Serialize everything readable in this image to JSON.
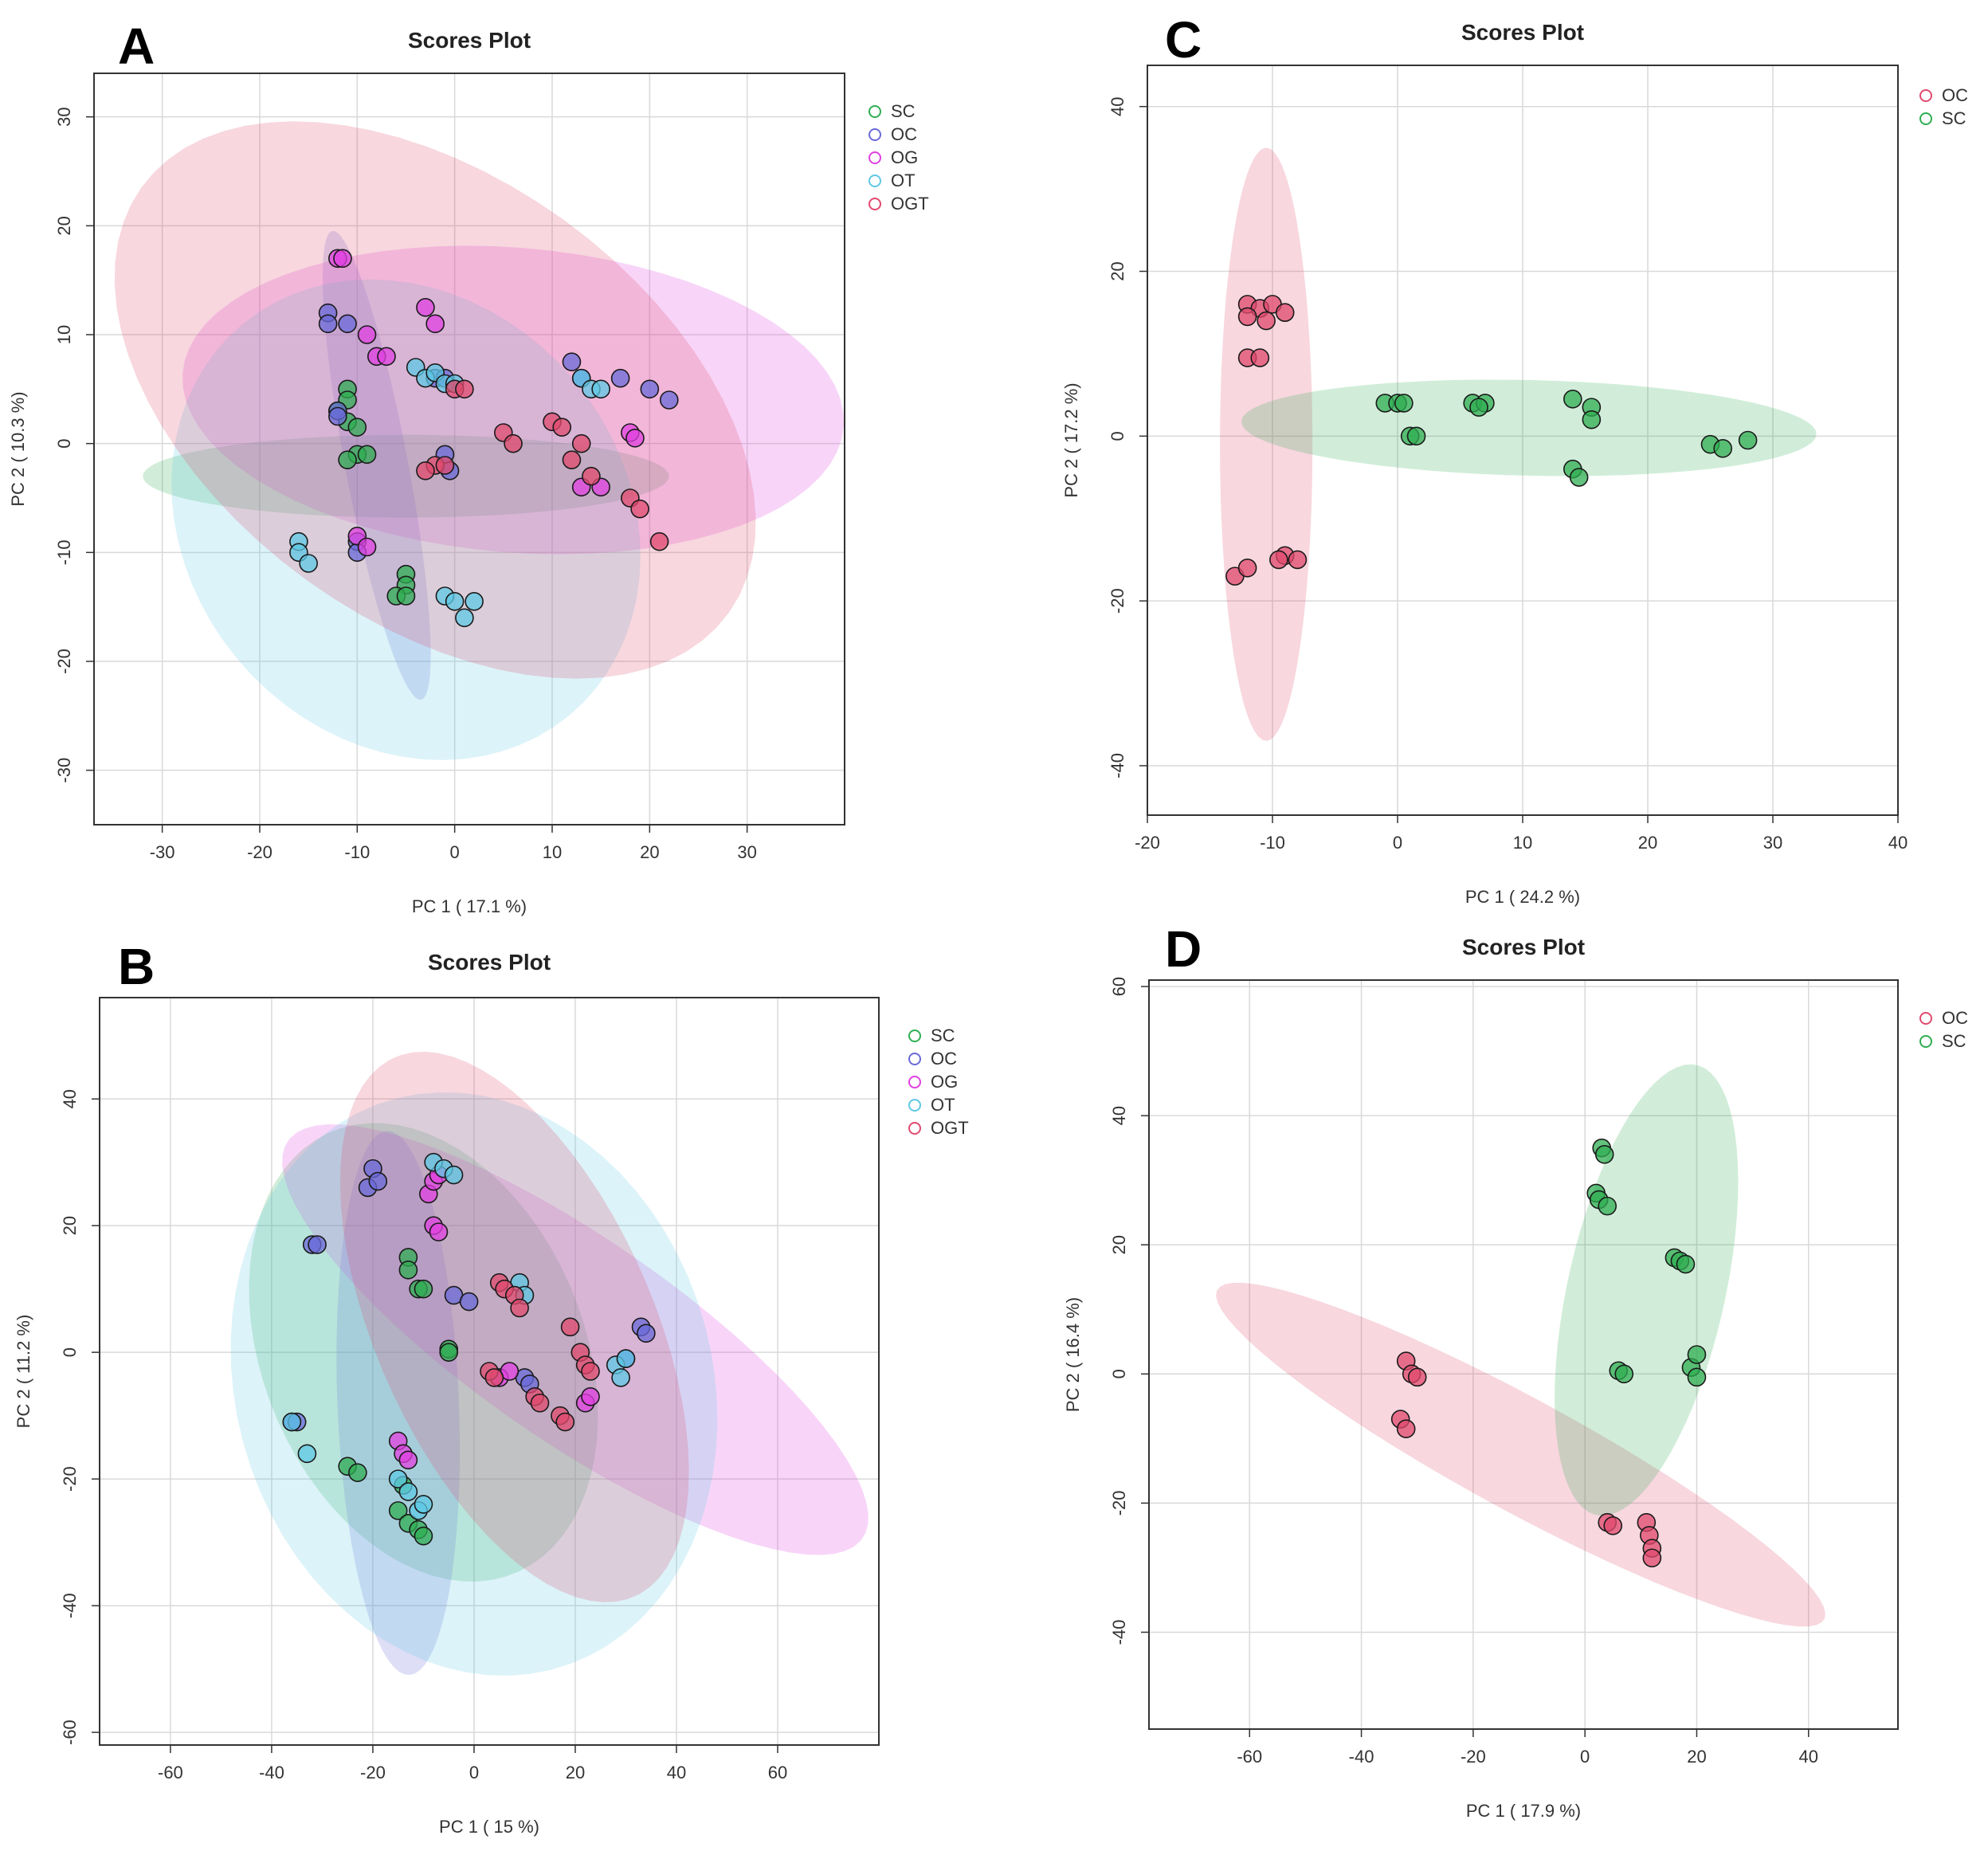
{
  "chart_data": [
    {
      "panel_letter": "A",
      "type": "scatter",
      "title": "Scores Plot",
      "xlabel": "PC 1 ( 17.1 %)",
      "ylabel": "PC 2 ( 10.3 %)",
      "xlim": [
        -37,
        40
      ],
      "ylim": [
        -35,
        34
      ],
      "xticks": [
        -30,
        -20,
        -10,
        0,
        10,
        20,
        30
      ],
      "yticks": [
        -30,
        -20,
        -10,
        0,
        10,
        20,
        30
      ],
      "legend_position": "right",
      "groups": [
        {
          "name": "SC",
          "color": "#2fae52",
          "ellipse": {
            "cx": -5,
            "cy": -3,
            "rx": 27,
            "ry": 3.8,
            "angle": 0
          },
          "points": [
            [
              -11,
              5
            ],
            [
              -11,
              4
            ],
            [
              -12,
              3
            ],
            [
              -11,
              2
            ],
            [
              -10,
              1.5
            ],
            [
              -10,
              -1
            ],
            [
              -9,
              -1
            ],
            [
              -11,
              -1.5
            ],
            [
              -5,
              -12
            ],
            [
              -5,
              -13
            ],
            [
              -6,
              -14
            ],
            [
              -5,
              -14
            ]
          ]
        },
        {
          "name": "OC",
          "color": "#6a6ad8",
          "ellipse": {
            "cx": -8,
            "cy": -2,
            "rx": 22,
            "ry": 3.2,
            "angle": -78
          },
          "points": [
            [
              -13,
              12
            ],
            [
              -13,
              11
            ],
            [
              -11,
              11
            ],
            [
              -12,
              3
            ],
            [
              -12,
              2.5
            ],
            [
              -2,
              6
            ],
            [
              -1,
              6
            ],
            [
              12,
              7.5
            ],
            [
              13,
              6
            ],
            [
              17,
              6
            ],
            [
              20,
              5
            ],
            [
              22,
              4
            ],
            [
              -1,
              -1
            ],
            [
              -0.5,
              -2.5
            ],
            [
              -10,
              -9
            ],
            [
              -10,
              -10
            ]
          ]
        },
        {
          "name": "OG",
          "color": "#e040e0",
          "ellipse": {
            "cx": 6,
            "cy": 4,
            "rx": 34,
            "ry": 14,
            "angle": -4
          },
          "points": [
            [
              -12,
              17
            ],
            [
              -11.5,
              17
            ],
            [
              -9,
              10
            ],
            [
              -8,
              8
            ],
            [
              -7,
              8
            ],
            [
              -3,
              12.5
            ],
            [
              -2,
              11
            ],
            [
              -10,
              -8.5
            ],
            [
              -9,
              -9.5
            ],
            [
              18,
              1
            ],
            [
              18.5,
              0.5
            ],
            [
              13,
              -4
            ],
            [
              15,
              -4
            ]
          ]
        },
        {
          "name": "OT",
          "color": "#5ec8e4",
          "ellipse": {
            "cx": -5,
            "cy": -7,
            "rx": 25,
            "ry": 21,
            "angle": -30
          },
          "points": [
            [
              -4,
              7
            ],
            [
              -3,
              6
            ],
            [
              -2,
              6.5
            ],
            [
              -1,
              5.5
            ],
            [
              0,
              5.5
            ],
            [
              13,
              6
            ],
            [
              14,
              5
            ],
            [
              15,
              5
            ],
            [
              -16,
              -9
            ],
            [
              -16,
              -10
            ],
            [
              -15,
              -11
            ],
            [
              -1,
              -14
            ],
            [
              0,
              -14.5
            ],
            [
              1,
              -16
            ],
            [
              2,
              -14.5
            ]
          ]
        },
        {
          "name": "OGT",
          "color": "#e04a6e",
          "ellipse": {
            "cx": -2,
            "cy": 4,
            "rx": 36,
            "ry": 21,
            "angle": -30
          },
          "points": [
            [
              0,
              5
            ],
            [
              1,
              5
            ],
            [
              10,
              2
            ],
            [
              11,
              1.5
            ],
            [
              5,
              1
            ],
            [
              6,
              0
            ],
            [
              12,
              -1.5
            ],
            [
              13,
              0
            ],
            [
              14,
              -3
            ],
            [
              -2,
              -2
            ],
            [
              -3,
              -2.5
            ],
            [
              -1,
              -2
            ],
            [
              18,
              -5
            ],
            [
              19,
              -6
            ],
            [
              21,
              -9
            ]
          ]
        }
      ]
    },
    {
      "panel_letter": "B",
      "type": "scatter",
      "title": "Scores Plot",
      "xlabel": "PC 1 ( 15 %)",
      "ylabel": "PC 2 ( 11.2 %)",
      "xlim": [
        -74,
        80
      ],
      "ylim": [
        -62,
        56
      ],
      "xticks": [
        -60,
        -40,
        -20,
        0,
        20,
        40,
        60
      ],
      "yticks": [
        -60,
        -40,
        -20,
        0,
        20,
        40
      ],
      "legend_position": "right",
      "groups": [
        {
          "name": "SC",
          "color": "#2fae52",
          "ellipse": {
            "cx": -10,
            "cy": 0,
            "rx": 40,
            "ry": 30,
            "angle": -50
          },
          "points": [
            [
              -13,
              15
            ],
            [
              -13,
              13
            ],
            [
              -11,
              10
            ],
            [
              -10,
              10
            ],
            [
              -5,
              0.5
            ],
            [
              -5,
              0
            ],
            [
              -25,
              -18
            ],
            [
              -23,
              -19
            ],
            [
              -15,
              -25
            ],
            [
              -13,
              -27
            ],
            [
              -11,
              -28
            ],
            [
              -10,
              -29
            ],
            [
              -14,
              -21
            ]
          ]
        },
        {
          "name": "OC",
          "color": "#6a6ad8",
          "ellipse": {
            "cx": -15,
            "cy": -8,
            "rx": 43,
            "ry": 12,
            "angle": -87
          },
          "points": [
            [
              -20,
              29
            ],
            [
              -21,
              26
            ],
            [
              -19,
              27
            ],
            [
              -32,
              17
            ],
            [
              -31,
              17
            ],
            [
              -4,
              9
            ],
            [
              -1,
              8
            ],
            [
              10,
              -4
            ],
            [
              11,
              -5
            ],
            [
              33,
              4
            ],
            [
              34,
              3
            ],
            [
              30,
              -1
            ],
            [
              -36,
              -11
            ],
            [
              -35,
              -11
            ]
          ]
        },
        {
          "name": "OG",
          "color": "#e040e0",
          "ellipse": {
            "cx": 20,
            "cy": 2,
            "rx": 65,
            "ry": 17,
            "angle": -28
          },
          "points": [
            [
              -9,
              25
            ],
            [
              -8,
              27
            ],
            [
              -7,
              28
            ],
            [
              -8,
              20
            ],
            [
              -7,
              19
            ],
            [
              -15,
              -14
            ],
            [
              -14,
              -16
            ],
            [
              -13,
              -17
            ],
            [
              22,
              -8
            ],
            [
              23,
              -7
            ],
            [
              5,
              -4
            ],
            [
              7,
              -3
            ]
          ]
        },
        {
          "name": "OT",
          "color": "#5ec8e4",
          "ellipse": {
            "cx": 0,
            "cy": -5,
            "rx": 50,
            "ry": 44,
            "angle": -35
          },
          "points": [
            [
              -8,
              30
            ],
            [
              -6,
              29
            ],
            [
              -4,
              28
            ],
            [
              9,
              11
            ],
            [
              10,
              9
            ],
            [
              28,
              -2
            ],
            [
              29,
              -4
            ],
            [
              30,
              -1
            ],
            [
              -36,
              -11
            ],
            [
              -33,
              -16
            ],
            [
              -15,
              -20
            ],
            [
              -13,
              -22
            ],
            [
              -11,
              -25
            ],
            [
              -10,
              -24
            ]
          ]
        },
        {
          "name": "OGT",
          "color": "#e04a6e",
          "ellipse": {
            "cx": 8,
            "cy": 4,
            "rx": 49,
            "ry": 26,
            "angle": -57
          },
          "points": [
            [
              5,
              11
            ],
            [
              6,
              10
            ],
            [
              8,
              9
            ],
            [
              9,
              7
            ],
            [
              3,
              -3
            ],
            [
              4,
              -4
            ],
            [
              12,
              -7
            ],
            [
              13,
              -8
            ],
            [
              17,
              -10
            ],
            [
              18,
              -11
            ],
            [
              19,
              4
            ],
            [
              21,
              0
            ],
            [
              22,
              -2
            ],
            [
              23,
              -3
            ]
          ]
        }
      ]
    },
    {
      "panel_letter": "C",
      "type": "scatter",
      "title": "Scores Plot",
      "xlabel": "PC 1 ( 24.2 %)",
      "ylabel": "PC 2 ( 17.2 %)",
      "xlim": [
        -20,
        40
      ],
      "ylim": [
        -46,
        45
      ],
      "xticks": [
        -20,
        -10,
        0,
        10,
        20,
        30,
        40
      ],
      "yticks": [
        -40,
        -20,
        0,
        20,
        40
      ],
      "legend_position": "top-right",
      "groups": [
        {
          "name": "OC",
          "color": "#e04a6e",
          "ellipse": {
            "cx": -10.5,
            "cy": -1,
            "rx": 36,
            "ry": 3.7,
            "angle": 90
          },
          "points": [
            [
              -12,
              16
            ],
            [
              -11,
              15.5
            ],
            [
              -10,
              16
            ],
            [
              -9,
              15
            ],
            [
              -12,
              14.5
            ],
            [
              -10.5,
              14
            ],
            [
              -12,
              9.5
            ],
            [
              -11,
              9.5
            ],
            [
              -13,
              -17
            ],
            [
              -12,
              -16
            ],
            [
              -9,
              -14.5
            ],
            [
              -8,
              -15
            ],
            [
              -9.5,
              -15
            ]
          ]
        },
        {
          "name": "SC",
          "color": "#2fae52",
          "ellipse": {
            "cx": 10.5,
            "cy": 1,
            "rx": 23,
            "ry": 5.8,
            "angle": -2
          },
          "points": [
            [
              -1,
              4
            ],
            [
              0,
              4
            ],
            [
              0.5,
              4
            ],
            [
              1,
              0
            ],
            [
              1.5,
              0
            ],
            [
              6,
              4
            ],
            [
              7,
              4
            ],
            [
              6.5,
              3.5
            ],
            [
              14,
              4.5
            ],
            [
              15.5,
              3.5
            ],
            [
              15.5,
              2
            ],
            [
              14,
              -4
            ],
            [
              14.5,
              -5
            ],
            [
              25,
              -1
            ],
            [
              26,
              -1.5
            ],
            [
              28,
              -0.5
            ]
          ]
        }
      ]
    },
    {
      "panel_letter": "D",
      "type": "scatter",
      "title": "Scores Plot",
      "xlabel": "PC 1 ( 17.9 %)",
      "ylabel": "PC 2 ( 16.4 %)",
      "xlim": [
        -78,
        56
      ],
      "ylim": [
        -55,
        61
      ],
      "xticks": [
        -60,
        -40,
        -20,
        0,
        20,
        40
      ],
      "yticks": [
        -40,
        -20,
        0,
        20,
        40,
        60
      ],
      "legend_position": "top-right",
      "groups": [
        {
          "name": "OC",
          "color": "#e04a6e",
          "ellipse": {
            "cx": -11.5,
            "cy": -12.5,
            "rx": 60,
            "ry": 9,
            "angle": -25
          },
          "points": [
            [
              -32,
              2
            ],
            [
              -31,
              0
            ],
            [
              -30,
              -0.5
            ],
            [
              -33,
              -7
            ],
            [
              -32,
              -8.5
            ],
            [
              4,
              -23
            ],
            [
              5,
              -23.5
            ],
            [
              11,
              -23
            ],
            [
              11.5,
              -25
            ],
            [
              12,
              -27
            ],
            [
              12,
              -28.5
            ]
          ]
        },
        {
          "name": "SC",
          "color": "#2fae52",
          "ellipse": {
            "cx": 11,
            "cy": 13,
            "rx": 36,
            "ry": 14,
            "angle": 75
          },
          "points": [
            [
              3,
              35
            ],
            [
              3.5,
              34
            ],
            [
              2,
              28
            ],
            [
              2.5,
              27
            ],
            [
              4,
              26
            ],
            [
              16,
              18
            ],
            [
              17,
              17.5
            ],
            [
              18,
              17
            ],
            [
              6,
              0.5
            ],
            [
              7,
              0
            ],
            [
              19,
              1
            ],
            [
              20,
              3
            ],
            [
              20,
              -0.5
            ]
          ]
        }
      ]
    }
  ]
}
